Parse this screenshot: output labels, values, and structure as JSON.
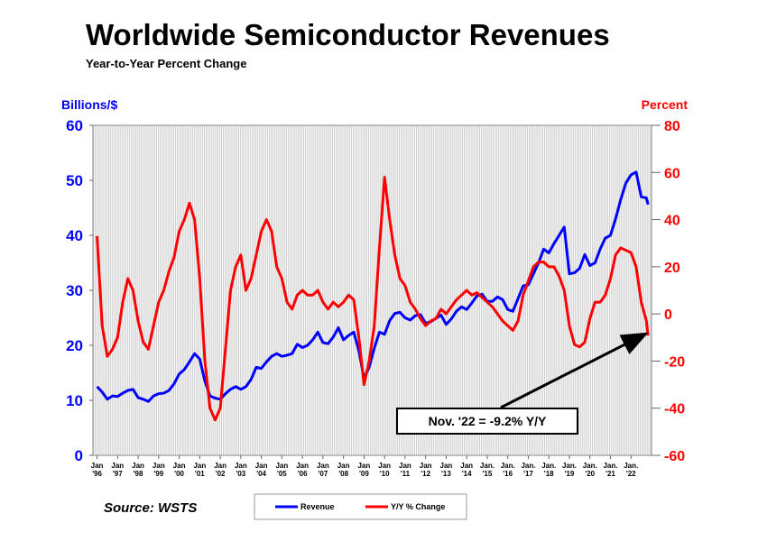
{
  "chart_data": {
    "type": "line",
    "title": "Worldwide Semiconductor Revenues",
    "subtitle": "Year-to-Year Percent Change",
    "y_label": "Billions/$",
    "y2_label": "Percent",
    "source": "Source: WSTS",
    "annotation": "Nov. '22 = -9.2% Y/Y",
    "x": [
      1996,
      1996.25,
      1996.5,
      1996.75,
      1997,
      1997.25,
      1997.5,
      1997.75,
      1998,
      1998.25,
      1998.5,
      1998.75,
      1999,
      1999.25,
      1999.5,
      1999.75,
      2000,
      2000.25,
      2000.5,
      2000.75,
      2001,
      2001.25,
      2001.5,
      2001.75,
      2002,
      2002.25,
      2002.5,
      2002.75,
      2003,
      2003.25,
      2003.5,
      2003.75,
      2004,
      2004.25,
      2004.5,
      2004.75,
      2005,
      2005.25,
      2005.5,
      2005.75,
      2006,
      2006.25,
      2006.5,
      2006.75,
      2007,
      2007.25,
      2007.5,
      2007.75,
      2008,
      2008.25,
      2008.5,
      2008.75,
      2009,
      2009.25,
      2009.5,
      2009.75,
      2010,
      2010.25,
      2010.5,
      2010.75,
      2011,
      2011.25,
      2011.5,
      2011.75,
      2012,
      2012.25,
      2012.5,
      2012.75,
      2013,
      2013.25,
      2013.5,
      2013.75,
      2014,
      2014.25,
      2014.5,
      2014.75,
      2015,
      2015.25,
      2015.5,
      2015.75,
      2016,
      2016.25,
      2016.5,
      2016.75,
      2017,
      2017.25,
      2017.5,
      2017.75,
      2018,
      2018.25,
      2018.5,
      2018.75,
      2019,
      2019.25,
      2019.5,
      2019.75,
      2020,
      2020.25,
      2020.5,
      2020.75,
      2021,
      2021.25,
      2021.5,
      2021.75,
      2022,
      2022.25,
      2022.5,
      2022.75,
      2022.833
    ],
    "series": [
      {
        "name": "Revenue",
        "color": "#0000ff",
        "axis": "y",
        "values": [
          12.5,
          11.5,
          10.2,
          10.8,
          10.7,
          11.3,
          11.8,
          12.0,
          10.5,
          10.2,
          9.8,
          10.8,
          11.2,
          11.3,
          11.8,
          13.0,
          14.8,
          15.6,
          17.0,
          18.5,
          17.5,
          13.5,
          10.8,
          10.4,
          10.2,
          11.2,
          12.0,
          12.5,
          12.0,
          12.5,
          13.8,
          16.0,
          15.8,
          17.0,
          18.0,
          18.5,
          18.0,
          18.2,
          18.5,
          20.2,
          19.6,
          20.0,
          21.0,
          22.4,
          20.5,
          20.3,
          21.5,
          23.2,
          21.0,
          21.8,
          22.4,
          19.0,
          14.0,
          16.0,
          19.5,
          22.4,
          22.0,
          24.5,
          25.8,
          26.0,
          25.0,
          24.6,
          25.4,
          25.6,
          24.0,
          24.3,
          24.9,
          25.5,
          23.8,
          24.8,
          26.2,
          27.0,
          26.5,
          27.7,
          29.0,
          29.3,
          28.0,
          28.0,
          28.8,
          28.3,
          26.5,
          26.2,
          28.5,
          30.8,
          31.0,
          33.0,
          35.0,
          37.5,
          36.8,
          38.5,
          40.0,
          41.5,
          33.0,
          33.2,
          34.0,
          36.5,
          34.5,
          35.0,
          37.5,
          39.5,
          40.0,
          43.0,
          46.5,
          49.5,
          51.0,
          51.5,
          47.0,
          46.8,
          45.6
        ]
      },
      {
        "name": "Y/Y % Change",
        "color": "#ff0000",
        "axis": "y2",
        "values": [
          33,
          -5,
          -18,
          -15,
          -10,
          5,
          15,
          10,
          -3,
          -12,
          -15,
          -5,
          5,
          10,
          18,
          24,
          35,
          40,
          47,
          40,
          15,
          -20,
          -40,
          -45,
          -40,
          -15,
          10,
          20,
          25,
          10,
          15,
          25,
          35,
          40,
          35,
          20,
          15,
          5,
          2,
          8,
          10,
          8,
          8,
          10,
          5,
          2,
          5,
          3,
          5,
          8,
          6,
          -10,
          -30,
          -20,
          -5,
          28,
          58,
          40,
          25,
          15,
          12,
          5,
          2,
          -2,
          -5,
          -3,
          -2,
          2,
          0,
          3,
          6,
          8,
          10,
          8,
          9,
          7,
          5,
          3,
          0,
          -3,
          -5,
          -7,
          -3,
          8,
          14,
          20,
          22,
          22,
          20,
          20,
          16,
          10,
          -5,
          -13,
          -14,
          -12,
          -2,
          5,
          5,
          8,
          15,
          25,
          28,
          27,
          26,
          20,
          5,
          -3,
          -9.2
        ]
      }
    ],
    "xlim": [
      1995.8,
      2023
    ],
    "xticks": [
      {
        "value": 1996,
        "label": "Jan '96"
      },
      {
        "value": 1997,
        "label": "Jan '97"
      },
      {
        "value": 1998,
        "label": "Jan '98"
      },
      {
        "value": 1999,
        "label": "Jan '99"
      },
      {
        "value": 2000,
        "label": "Jan '00"
      },
      {
        "value": 2001,
        "label": "Jan '01"
      },
      {
        "value": 2002,
        "label": "Jan '02"
      },
      {
        "value": 2003,
        "label": "Jan '03"
      },
      {
        "value": 2004,
        "label": "Jan '04"
      },
      {
        "value": 2005,
        "label": "Jan '05"
      },
      {
        "value": 2006,
        "label": "Jan '06"
      },
      {
        "value": 2007,
        "label": "Jan '07"
      },
      {
        "value": 2008,
        "label": "Jan '08"
      },
      {
        "value": 2009,
        "label": "Jan '09"
      },
      {
        "value": 2010,
        "label": "Jan '10"
      },
      {
        "value": 2011,
        "label": "Jan '11"
      },
      {
        "value": 2012,
        "label": "Jan '12"
      },
      {
        "value": 2013,
        "label": "Jan '13"
      },
      {
        "value": 2014,
        "label": "Jan '14"
      },
      {
        "value": 2015,
        "label": "Jan. '15"
      },
      {
        "value": 2016,
        "label": "Jan. '16"
      },
      {
        "value": 2017,
        "label": "Jan. '17"
      },
      {
        "value": 2018,
        "label": "Jan. '18"
      },
      {
        "value": 2019,
        "label": "Jan. '19"
      },
      {
        "value": 2020,
        "label": "Jan. '20"
      },
      {
        "value": 2021,
        "label": "Jan. '21"
      },
      {
        "value": 2022,
        "label": "Jan. '22"
      }
    ],
    "ylim": [
      0,
      60
    ],
    "yticks": [
      0,
      10,
      20,
      30,
      40,
      50,
      60
    ],
    "y2lim": [
      -60,
      80
    ],
    "y2ticks": [
      -60,
      -40,
      -20,
      0,
      20,
      40,
      60,
      80
    ],
    "y_color": "#0000ff",
    "y2_color": "#ff0000"
  }
}
